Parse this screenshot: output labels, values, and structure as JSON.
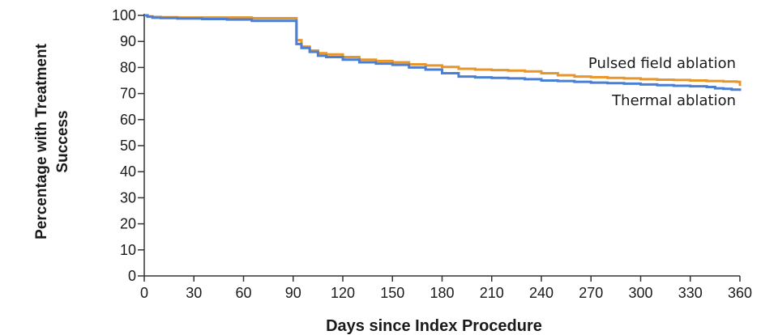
{
  "chart_data": {
    "type": "line",
    "title": "",
    "xlabel": "Days since Index Procedure",
    "ylabel": [
      "Percentage with Treatment",
      "Success"
    ],
    "xlim": [
      0,
      360
    ],
    "ylim": [
      0,
      100
    ],
    "xticks": [
      "0",
      "30",
      "60",
      "90",
      "120",
      "150",
      "180",
      "210",
      "240",
      "270",
      "300",
      "330",
      "360"
    ],
    "yticks": [
      "0",
      "10",
      "20",
      "30",
      "40",
      "50",
      "60",
      "70",
      "80",
      "90",
      "100"
    ],
    "grid": false,
    "legend": "direct labels at right end of lines",
    "series": [
      {
        "name": "Pulsed field ablation",
        "color": "#e8962a",
        "step": true,
        "x": [
          0,
          2,
          5,
          10,
          20,
          35,
          50,
          65,
          75,
          91,
          92,
          95,
          100,
          105,
          110,
          120,
          130,
          140,
          150,
          160,
          170,
          180,
          190,
          200,
          210,
          220,
          230,
          240,
          250,
          260,
          270,
          280,
          290,
          300,
          310,
          320,
          330,
          340,
          350,
          358,
          360
        ],
        "y": [
          100,
          99.6,
          99.4,
          99.3,
          99.2,
          99.2,
          99.2,
          98.9,
          98.9,
          98.9,
          90.5,
          88,
          86.5,
          85.5,
          85,
          84,
          83,
          82.5,
          82,
          81.2,
          80.8,
          80.2,
          79.5,
          79.2,
          79,
          78.8,
          78.5,
          77.8,
          77,
          76.5,
          76.3,
          76,
          75.8,
          75.5,
          75.3,
          75.2,
          75,
          74.8,
          74.6,
          74.5,
          73
        ]
      },
      {
        "name": "Thermal ablation",
        "color": "#4a7fd4",
        "step": true,
        "x": [
          0,
          2,
          5,
          10,
          20,
          35,
          50,
          65,
          75,
          91,
          92,
          95,
          100,
          105,
          110,
          120,
          130,
          140,
          150,
          160,
          170,
          180,
          190,
          200,
          210,
          220,
          230,
          240,
          250,
          260,
          270,
          280,
          290,
          300,
          310,
          320,
          330,
          340,
          345,
          350,
          355,
          360
        ],
        "y": [
          100,
          99.5,
          99.1,
          99,
          98.8,
          98.6,
          98.4,
          97.9,
          97.9,
          97.9,
          89,
          87.5,
          86,
          84.5,
          84,
          83,
          82,
          81.5,
          81,
          80,
          79.2,
          77.8,
          76.5,
          76.2,
          76,
          75.8,
          75.5,
          75,
          74.8,
          74.5,
          74.2,
          74,
          73.8,
          73.5,
          73.2,
          73,
          72.8,
          72.5,
          72,
          71.8,
          71.5,
          71
        ]
      }
    ]
  }
}
